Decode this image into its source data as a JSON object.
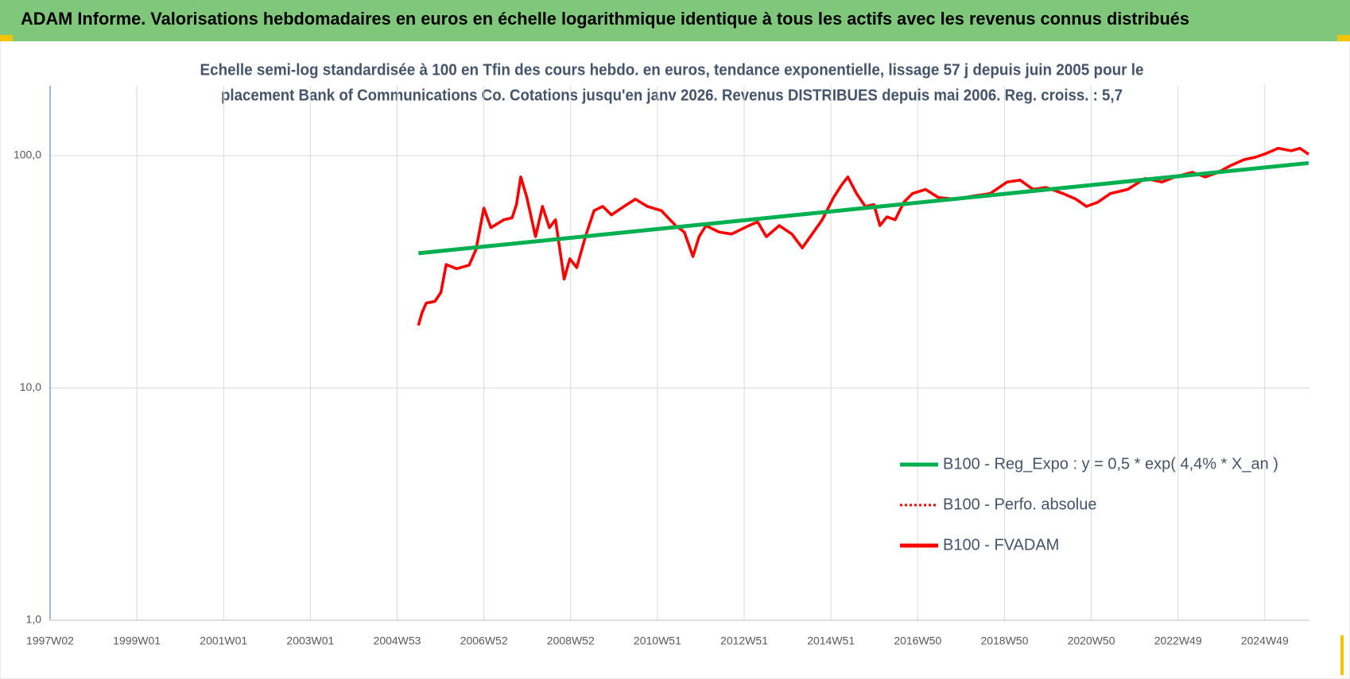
{
  "chart_data": {
    "type": "line",
    "title": "ADAM Informe. Valorisations hebdomadaires en euros en échelle logarithmique identique à tous les actifs avec les revenus connus distribués",
    "subtitle": [
      "Echelle semi-log standardisée à 100 en Tfin des cours hebdo. en euros, tendance exponentielle, lissage 57 j depuis juin 2005 pour le",
      "placement Bank of Communications Co. Cotations jusqu'en janv 2026. Revenus DISTRIBUES depuis mai 2006. Reg. croiss. : 5,7"
    ],
    "log_y": true,
    "grid": true,
    "legend": "right",
    "xlim": [
      1997.0,
      2026.03
    ],
    "xticks": [
      {
        "value": 1997,
        "label": "1997W02"
      },
      {
        "value": 1999,
        "label": "1999W01"
      },
      {
        "value": 2001,
        "label": "2001W01"
      },
      {
        "value": 2003,
        "label": "2003W01"
      },
      {
        "value": 2005,
        "label": "2004W53"
      },
      {
        "value": 2007,
        "label": "2006W52"
      },
      {
        "value": 2009,
        "label": "2008W52"
      },
      {
        "value": 2011,
        "label": "2010W51"
      },
      {
        "value": 2013,
        "label": "2012W51"
      },
      {
        "value": 2015,
        "label": "2014W51"
      },
      {
        "value": 2017,
        "label": "2016W50"
      },
      {
        "value": 2019,
        "label": "2018W50"
      },
      {
        "value": 2021,
        "label": "2020W50"
      },
      {
        "value": 2023,
        "label": "2022W49"
      },
      {
        "value": 2025,
        "label": "2024W49"
      }
    ],
    "ylim": [
      1,
      200
    ],
    "yticks": [
      {
        "value": 1,
        "label": "1,0"
      },
      {
        "value": 10,
        "label": "10,0"
      },
      {
        "value": 100,
        "label": "100,0"
      }
    ],
    "series": [
      {
        "name": "B100 - Reg_Expo : y = 0,5 * exp( 4,4% *  X_an )",
        "color": "#00b050",
        "style": "solid",
        "x": [
          2005.49,
          2026.01
        ],
        "values": [
          38,
          93
        ]
      },
      {
        "name": "B100 - Perfo. absolue",
        "color": "#ff0000",
        "style": "dotted",
        "x": [
          2005.49,
          2005.57,
          2005.67,
          2005.87,
          2006.01,
          2006.13,
          2006.37,
          2006.66,
          2006.82,
          2007.0,
          2007.16,
          2007.46,
          2007.65,
          2007.75,
          2007.85,
          2007.99,
          2008.19,
          2008.35,
          2008.51,
          2008.65,
          2008.85,
          2008.98,
          2009.14,
          2009.34,
          2009.54,
          2009.74,
          2009.94,
          2010.23,
          2010.49,
          2010.77,
          2011.09,
          2011.42,
          2011.62,
          2011.82,
          2011.96,
          2012.12,
          2012.42,
          2012.71,
          2013.11,
          2013.31,
          2013.51,
          2013.81,
          2014.1,
          2014.34,
          2014.6,
          2014.8,
          2015.06,
          2015.25,
          2015.39,
          2015.59,
          2015.79,
          2015.99,
          2016.13,
          2016.29,
          2016.48,
          2016.68,
          2016.88,
          2017.18,
          2017.48,
          2017.87,
          2018.27,
          2018.67,
          2019.06,
          2019.36,
          2019.66,
          2019.96,
          2020.35,
          2020.65,
          2020.89,
          2021.15,
          2021.44,
          2021.84,
          2022.24,
          2022.63,
          2022.93,
          2023.33,
          2023.63,
          2023.92,
          2024.22,
          2024.52,
          2024.78,
          2025.02,
          2025.31,
          2025.61,
          2025.81,
          2026.01
        ],
        "values": [
          18.6,
          21,
          23.2,
          23.6,
          25.8,
          34,
          32.6,
          33.8,
          39.5,
          59.5,
          49,
          53,
          54,
          61.6,
          81,
          66,
          44.8,
          60.5,
          49,
          53,
          29.4,
          36,
          33,
          44.8,
          58,
          60.5,
          55.6,
          60.5,
          65,
          60.5,
          58,
          50,
          46.9,
          36.8,
          44.8,
          50,
          46.9,
          46,
          50,
          51.9,
          44.8,
          50,
          46,
          40.1,
          46.9,
          53,
          66,
          75,
          81,
          68.7,
          60.5,
          61.6,
          50,
          54.5,
          53,
          63,
          68.7,
          71.6,
          66,
          65,
          67,
          68.7,
          77,
          78.5,
          71.6,
          73,
          68.7,
          65,
          60.5,
          63,
          68.7,
          71.6,
          79.8,
          77,
          81,
          84.8,
          81,
          84.8,
          90.8,
          96.1,
          98.5,
          102,
          107.6,
          105,
          107.6,
          101.5
        ]
      },
      {
        "name": "B100 - FVADAM",
        "color": "#ff0000",
        "style": "solid",
        "x": [
          2005.49,
          2005.57,
          2005.67,
          2005.87,
          2006.01,
          2006.13,
          2006.37,
          2006.66,
          2006.82,
          2007.0,
          2007.16,
          2007.46,
          2007.65,
          2007.75,
          2007.85,
          2007.99,
          2008.19,
          2008.35,
          2008.51,
          2008.65,
          2008.85,
          2008.98,
          2009.14,
          2009.34,
          2009.54,
          2009.74,
          2009.94,
          2010.23,
          2010.49,
          2010.77,
          2011.09,
          2011.42,
          2011.62,
          2011.82,
          2011.96,
          2012.12,
          2012.42,
          2012.71,
          2013.11,
          2013.31,
          2013.51,
          2013.81,
          2014.1,
          2014.34,
          2014.6,
          2014.8,
          2015.06,
          2015.25,
          2015.39,
          2015.59,
          2015.79,
          2015.99,
          2016.13,
          2016.29,
          2016.48,
          2016.68,
          2016.88,
          2017.18,
          2017.48,
          2017.87,
          2018.27,
          2018.67,
          2019.06,
          2019.36,
          2019.66,
          2019.96,
          2020.35,
          2020.65,
          2020.89,
          2021.15,
          2021.44,
          2021.84,
          2022.24,
          2022.63,
          2022.93,
          2023.33,
          2023.63,
          2023.92,
          2024.22,
          2024.52,
          2024.78,
          2025.02,
          2025.31,
          2025.61,
          2025.81,
          2026.01
        ],
        "values": [
          18.6,
          21,
          23.2,
          23.6,
          25.8,
          34,
          32.6,
          33.8,
          39.5,
          59.5,
          49,
          53,
          54,
          61.6,
          81,
          66,
          44.8,
          60.5,
          49,
          53,
          29.4,
          36,
          33,
          44.8,
          58,
          60.5,
          55.6,
          60.5,
          65,
          60.5,
          58,
          50,
          46.9,
          36.8,
          44.8,
          50,
          46.9,
          46,
          50,
          51.9,
          44.8,
          50,
          46,
          40.1,
          46.9,
          53,
          66,
          75,
          81,
          68.7,
          60.5,
          61.6,
          50,
          54.5,
          53,
          63,
          68.7,
          71.6,
          66,
          65,
          67,
          68.7,
          77,
          78.5,
          71.6,
          73,
          68.7,
          65,
          60.5,
          63,
          68.7,
          71.6,
          79.8,
          77,
          81,
          84.8,
          81,
          84.8,
          90.8,
          96.1,
          98.5,
          102,
          107.6,
          105,
          107.6,
          101.5
        ]
      }
    ]
  }
}
